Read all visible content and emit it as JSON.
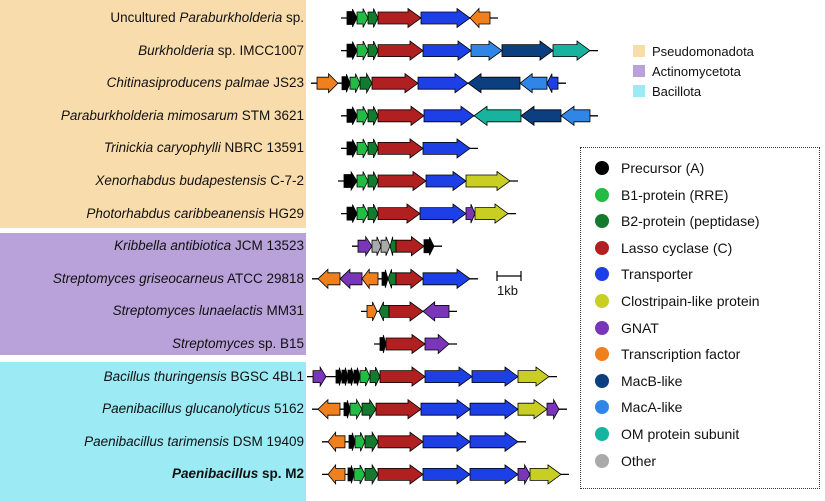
{
  "colors": {
    "precursor": "#000000",
    "b1": "#22bb44",
    "b2": "#147a2e",
    "cyclase": "#b02020",
    "transporter": "#1d3fe6",
    "clostripain": "#c9cf22",
    "gnat": "#7a36b8",
    "tf": "#f07f1e",
    "macb": "#0c3f80",
    "maca": "#2f86e6",
    "om": "#17b39e",
    "other": "#aaaaaa"
  },
  "phyla": [
    {
      "name": "Pseudomonadota",
      "color": "#f9dcac"
    },
    {
      "name": "Actinomycetota",
      "color": "#b9a2da"
    },
    {
      "name": "Bacillota",
      "color": "#9ceaf4"
    }
  ],
  "legend": [
    {
      "label": "Precursor (A)",
      "key": "precursor"
    },
    {
      "label": "B1-protein (RRE)",
      "key": "b1"
    },
    {
      "label": "B2-protein (peptidase)",
      "key": "b2"
    },
    {
      "label": "Lasso cyclase (C)",
      "key": "cyclase"
    },
    {
      "label": "Transporter",
      "key": "transporter"
    },
    {
      "label": "Clostripain-like protein",
      "key": "clostripain"
    },
    {
      "label": "GNAT",
      "key": "gnat"
    },
    {
      "label": "Transcription factor",
      "key": "tf"
    },
    {
      "label": "MacB-like",
      "key": "macb"
    },
    {
      "label": "MacA-like",
      "key": "maca"
    },
    {
      "label": "OM protein subunit",
      "key": "om"
    },
    {
      "label": "Other",
      "key": "other"
    }
  ],
  "scale_bar": {
    "label": "1kb"
  },
  "organisms": [
    {
      "group": 0,
      "italic": "",
      "pre": "Uncultured ",
      "ital": "Paraburkholderia",
      "post": " sp.",
      "bold": false,
      "genes": [
        [
          "precursor",
          347,
          357,
          1
        ],
        [
          "b1",
          357,
          368,
          1
        ],
        [
          "b2",
          368,
          378,
          1
        ],
        [
          "cyclase",
          378,
          421,
          1
        ],
        [
          "transporter",
          421,
          470,
          1
        ],
        [
          "tf",
          470,
          490,
          -1
        ]
      ]
    },
    {
      "group": 0,
      "pre": "",
      "ital": "Burkholderia",
      "post": " sp. IMCC1007",
      "bold": false,
      "genes": [
        [
          "precursor",
          347,
          357,
          1
        ],
        [
          "b1",
          357,
          368,
          1
        ],
        [
          "b2",
          368,
          378,
          1
        ],
        [
          "cyclase",
          378,
          423,
          1
        ],
        [
          "transporter",
          423,
          471,
          1
        ],
        [
          "maca",
          471,
          502,
          1
        ],
        [
          "macb",
          502,
          553,
          1
        ],
        [
          "om",
          553,
          590,
          1
        ]
      ]
    },
    {
      "group": 0,
      "pre": "",
      "ital": "Chitinasiproducens palmae",
      "post": " JS23",
      "bold": false,
      "genes": [
        [
          "tf",
          317,
          338,
          1
        ],
        [
          "precursor",
          342,
          350,
          1
        ],
        [
          "b1",
          350,
          360,
          1
        ],
        [
          "b2",
          360,
          372,
          1
        ],
        [
          "cyclase",
          372,
          418,
          1
        ],
        [
          "transporter",
          418,
          468,
          1
        ],
        [
          "macb",
          468,
          520,
          -1
        ],
        [
          "maca",
          520,
          547,
          -1
        ],
        [
          "transporter",
          547,
          558,
          -1
        ]
      ]
    },
    {
      "group": 0,
      "pre": "",
      "ital": "Paraburkholderia mimosarum",
      "post": " STM 3621",
      "bold": false,
      "genes": [
        [
          "precursor",
          347,
          357,
          1
        ],
        [
          "b1",
          357,
          368,
          1
        ],
        [
          "b2",
          368,
          378,
          1
        ],
        [
          "cyclase",
          378,
          424,
          1
        ],
        [
          "transporter",
          424,
          474,
          1
        ],
        [
          "om",
          474,
          521,
          -1
        ],
        [
          "macb",
          521,
          561,
          -1
        ],
        [
          "maca",
          561,
          590,
          -1
        ]
      ]
    },
    {
      "group": 0,
      "pre": "",
      "ital": "Trinickia caryophylli",
      "post": " NBRC 13591",
      "bold": false,
      "genes": [
        [
          "precursor",
          347,
          357,
          1
        ],
        [
          "b1",
          357,
          368,
          1
        ],
        [
          "b2",
          368,
          378,
          1
        ],
        [
          "cyclase",
          378,
          423,
          1
        ],
        [
          "transporter",
          423,
          470,
          1
        ]
      ]
    },
    {
      "group": 0,
      "pre": "",
      "ital": "Xenorhabdus budapestensis",
      "post": " C-7-2",
      "bold": false,
      "genes": [
        [
          "precursor",
          344,
          357,
          1
        ],
        [
          "b1",
          357,
          368,
          1
        ],
        [
          "b2",
          368,
          378,
          1
        ],
        [
          "cyclase",
          378,
          426,
          1
        ],
        [
          "transporter",
          426,
          466,
          1
        ],
        [
          "clostripain",
          466,
          510,
          1
        ]
      ]
    },
    {
      "group": 0,
      "pre": "",
      "ital": "Photorhabdus caribbeanensis",
      "post": " HG29",
      "bold": false,
      "genes": [
        [
          "precursor",
          347,
          357,
          1
        ],
        [
          "b1",
          357,
          368,
          1
        ],
        [
          "b2",
          368,
          378,
          1
        ],
        [
          "cyclase",
          378,
          420,
          1
        ],
        [
          "transporter",
          420,
          466,
          1
        ],
        [
          "gnat",
          466,
          475,
          1
        ],
        [
          "clostripain",
          475,
          508,
          1
        ]
      ]
    },
    {
      "group": 1,
      "pre": "",
      "ital": "Kribbella antibiotica",
      "post": " JCM 13523",
      "bold": false,
      "genes": [
        [
          "gnat",
          358,
          372,
          1
        ],
        [
          "other",
          372,
          381,
          1
        ],
        [
          "other",
          381,
          390,
          1
        ],
        [
          "b2",
          390,
          396,
          -1
        ],
        [
          "cyclase",
          396,
          424,
          1
        ],
        [
          "precursor",
          424,
          434,
          1
        ]
      ]
    },
    {
      "group": 1,
      "pre": "",
      "ital": "Streptomyces griseocarneus",
      "post": " ATCC 29818",
      "bold": false,
      "genes": [
        [
          "tf",
          318,
          340,
          -1
        ],
        [
          "gnat",
          340,
          362,
          -1
        ],
        [
          "tf",
          362,
          378,
          -1
        ],
        [
          "precursor",
          382,
          388,
          1
        ],
        [
          "b2",
          388,
          396,
          -1
        ],
        [
          "cyclase",
          396,
          423,
          1
        ],
        [
          "transporter",
          423,
          470,
          1
        ]
      ]
    },
    {
      "group": 1,
      "pre": "",
      "ital": "Streptomyces lunaelactis",
      "post": " MM31",
      "bold": false,
      "genes": [
        [
          "tf",
          367,
          377,
          1
        ],
        [
          "b2",
          379,
          389,
          -1
        ],
        [
          "cyclase",
          389,
          423,
          1
        ],
        [
          "gnat",
          423,
          449,
          -1
        ]
      ]
    },
    {
      "group": 1,
      "pre": "",
      "ital": "Streptomyces",
      "post": " sp. B15",
      "bold": false,
      "genes": [
        [
          "precursor",
          380,
          386,
          1
        ],
        [
          "cyclase",
          386,
          425,
          1
        ],
        [
          "gnat",
          425,
          449,
          1
        ]
      ]
    },
    {
      "group": 2,
      "pre": "",
      "ital": "Bacillus thuringensis",
      "post": " BGSC 4BL1",
      "bold": false,
      "genes": [
        [
          "gnat",
          313,
          326,
          1
        ],
        [
          "precursor",
          336,
          342,
          1
        ],
        [
          "precursor",
          342,
          348,
          1
        ],
        [
          "precursor",
          348,
          354,
          1
        ],
        [
          "precursor",
          354,
          360,
          1
        ],
        [
          "b1",
          360,
          370,
          1
        ],
        [
          "b2",
          370,
          380,
          1
        ],
        [
          "cyclase",
          380,
          425,
          1
        ],
        [
          "transporter",
          425,
          472,
          1
        ],
        [
          "transporter",
          472,
          518,
          1
        ],
        [
          "clostripain",
          518,
          549,
          1
        ]
      ]
    },
    {
      "group": 2,
      "pre": "",
      "ital": "Paenibacillus glucanolyticus",
      "post": " 5162",
      "bold": false,
      "genes": [
        [
          "tf",
          318,
          340,
          -1
        ],
        [
          "precursor",
          344,
          350,
          1
        ],
        [
          "b1",
          350,
          362,
          1
        ],
        [
          "b2",
          362,
          376,
          1
        ],
        [
          "cyclase",
          376,
          421,
          1
        ],
        [
          "transporter",
          421,
          470,
          1
        ],
        [
          "transporter",
          470,
          518,
          1
        ],
        [
          "clostripain",
          518,
          547,
          1
        ],
        [
          "gnat",
          547,
          559,
          1
        ]
      ]
    },
    {
      "group": 2,
      "pre": "",
      "ital": "Paenibacillus tarimensis",
      "post": " DSM 19409",
      "bold": false,
      "genes": [
        [
          "tf",
          328,
          345,
          -1
        ],
        [
          "precursor",
          349,
          355,
          1
        ],
        [
          "b1",
          355,
          365,
          1
        ],
        [
          "b2",
          365,
          378,
          1
        ],
        [
          "cyclase",
          378,
          423,
          1
        ],
        [
          "transporter",
          423,
          470,
          1
        ],
        [
          "transporter",
          470,
          518,
          1
        ]
      ]
    },
    {
      "group": 2,
      "pre": "",
      "ital": "Paenibacillus",
      "post": " sp. M2",
      "bold": true,
      "genes": [
        [
          "tf",
          328,
          345,
          -1
        ],
        [
          "precursor",
          348,
          354,
          1
        ],
        [
          "b1",
          354,
          365,
          1
        ],
        [
          "b2",
          365,
          378,
          1
        ],
        [
          "cyclase",
          378,
          423,
          1
        ],
        [
          "transporter",
          423,
          470,
          1
        ],
        [
          "transporter",
          470,
          518,
          1
        ],
        [
          "gnat",
          518,
          530,
          1
        ],
        [
          "clostripain",
          530,
          561,
          1
        ]
      ]
    }
  ]
}
